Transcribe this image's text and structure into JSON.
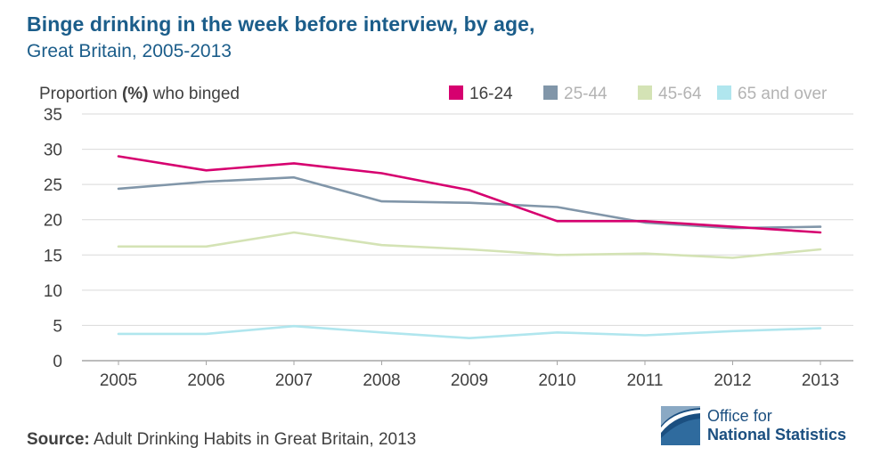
{
  "title": "Binge drinking in the week before interview, by age,",
  "subtitle": "Great Britain, 2005-2013",
  "source": {
    "label": "Source:",
    "text": "Adult Drinking Habits in Great Britain, 2013"
  },
  "logo": {
    "line1": "Office for",
    "line2": "National Statistics"
  },
  "chart_data": {
    "type": "line",
    "ylabel_prefix": "Proportion ",
    "ylabel_bold": "(%)",
    "ylabel_suffix": " who binged",
    "x": [
      "2005",
      "2006",
      "2007",
      "2008",
      "2009",
      "2010",
      "2011",
      "2012",
      "2013"
    ],
    "ylim": [
      0,
      35
    ],
    "yticks": [
      0,
      5,
      10,
      15,
      20,
      25,
      30,
      35
    ],
    "grid": true,
    "legend_position": "top-right",
    "series": [
      {
        "name": "16-24",
        "color": "#d6006f",
        "values": [
          29.0,
          27.0,
          28.0,
          26.6,
          24.2,
          19.8,
          19.8,
          19.0,
          18.2
        ]
      },
      {
        "name": "25-44",
        "color": "#8196a9",
        "values": [
          24.4,
          25.4,
          26.0,
          22.6,
          22.4,
          21.8,
          19.6,
          18.8,
          19.0
        ]
      },
      {
        "name": "45-64",
        "color": "#d4e3b5",
        "values": [
          16.2,
          16.2,
          18.2,
          16.4,
          15.8,
          15.0,
          15.2,
          14.6,
          15.8
        ]
      },
      {
        "name": "65 and over",
        "color": "#b0e6ee",
        "values": [
          3.8,
          3.8,
          4.9,
          4.0,
          3.2,
          4.0,
          3.6,
          4.2,
          4.6
        ]
      }
    ],
    "legend_text_color": "#b3b3b3",
    "legend_first_text_color": "#404040",
    "grid_color": "#d9d9d9",
    "axis_color": "#a6a6a6",
    "tick_text_color": "#404040"
  }
}
